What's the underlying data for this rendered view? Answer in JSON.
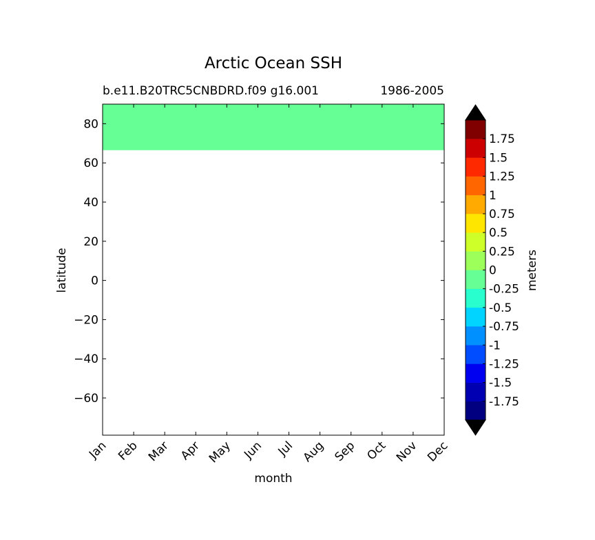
{
  "chart_data": {
    "type": "heatmap",
    "title": "Arctic Ocean SSH",
    "subtitle_left": "b.e11.B20TRC5CNBDRD.f09 g16.001",
    "subtitle_right": "1986-2005",
    "xlabel": "month",
    "ylabel": "latitude",
    "x_categories": [
      "Jan",
      "Feb",
      "Mar",
      "Apr",
      "May",
      "Jun",
      "Jul",
      "Aug",
      "Sep",
      "Oct",
      "Nov",
      "Dec"
    ],
    "ylim": [
      -79,
      90
    ],
    "yticks": [
      -60,
      -40,
      -20,
      0,
      20,
      40,
      60,
      80
    ],
    "ytick_labels": [
      "−60",
      "−40",
      "−20",
      "0",
      "20",
      "40",
      "60",
      "80"
    ],
    "filled_region": {
      "lat_min": 66.5,
      "lat_max": 90,
      "value_band": [
        -0.25,
        0
      ],
      "color": "#66ff96"
    },
    "grid": false,
    "colorbar": {
      "label": "meters",
      "extend": "both",
      "levels": [
        -1.75,
        -1.5,
        -1.25,
        -1,
        -0.75,
        -0.5,
        -0.25,
        0,
        0.25,
        0.5,
        0.75,
        1,
        1.25,
        1.5,
        1.75
      ],
      "tick_labels": [
        "-1.75",
        "-1.5",
        "-1.25",
        "-1",
        "-0.75",
        "-0.5",
        "-0.25",
        "0",
        "0.25",
        "0.5",
        "0.75",
        "1",
        "1.25",
        "1.5",
        "1.75"
      ],
      "colors_bottom_to_top": [
        "#000080",
        "#0000b3",
        "#0000f1",
        "#004dff",
        "#0090ff",
        "#00d4ff",
        "#29ffce",
        "#66ff96",
        "#9cff5a",
        "#ceff29",
        "#ffe600",
        "#ffaa00",
        "#ff6600",
        "#ff2900",
        "#cc0000",
        "#800000"
      ],
      "under_color": "#000000",
      "over_color": "#000000"
    }
  }
}
